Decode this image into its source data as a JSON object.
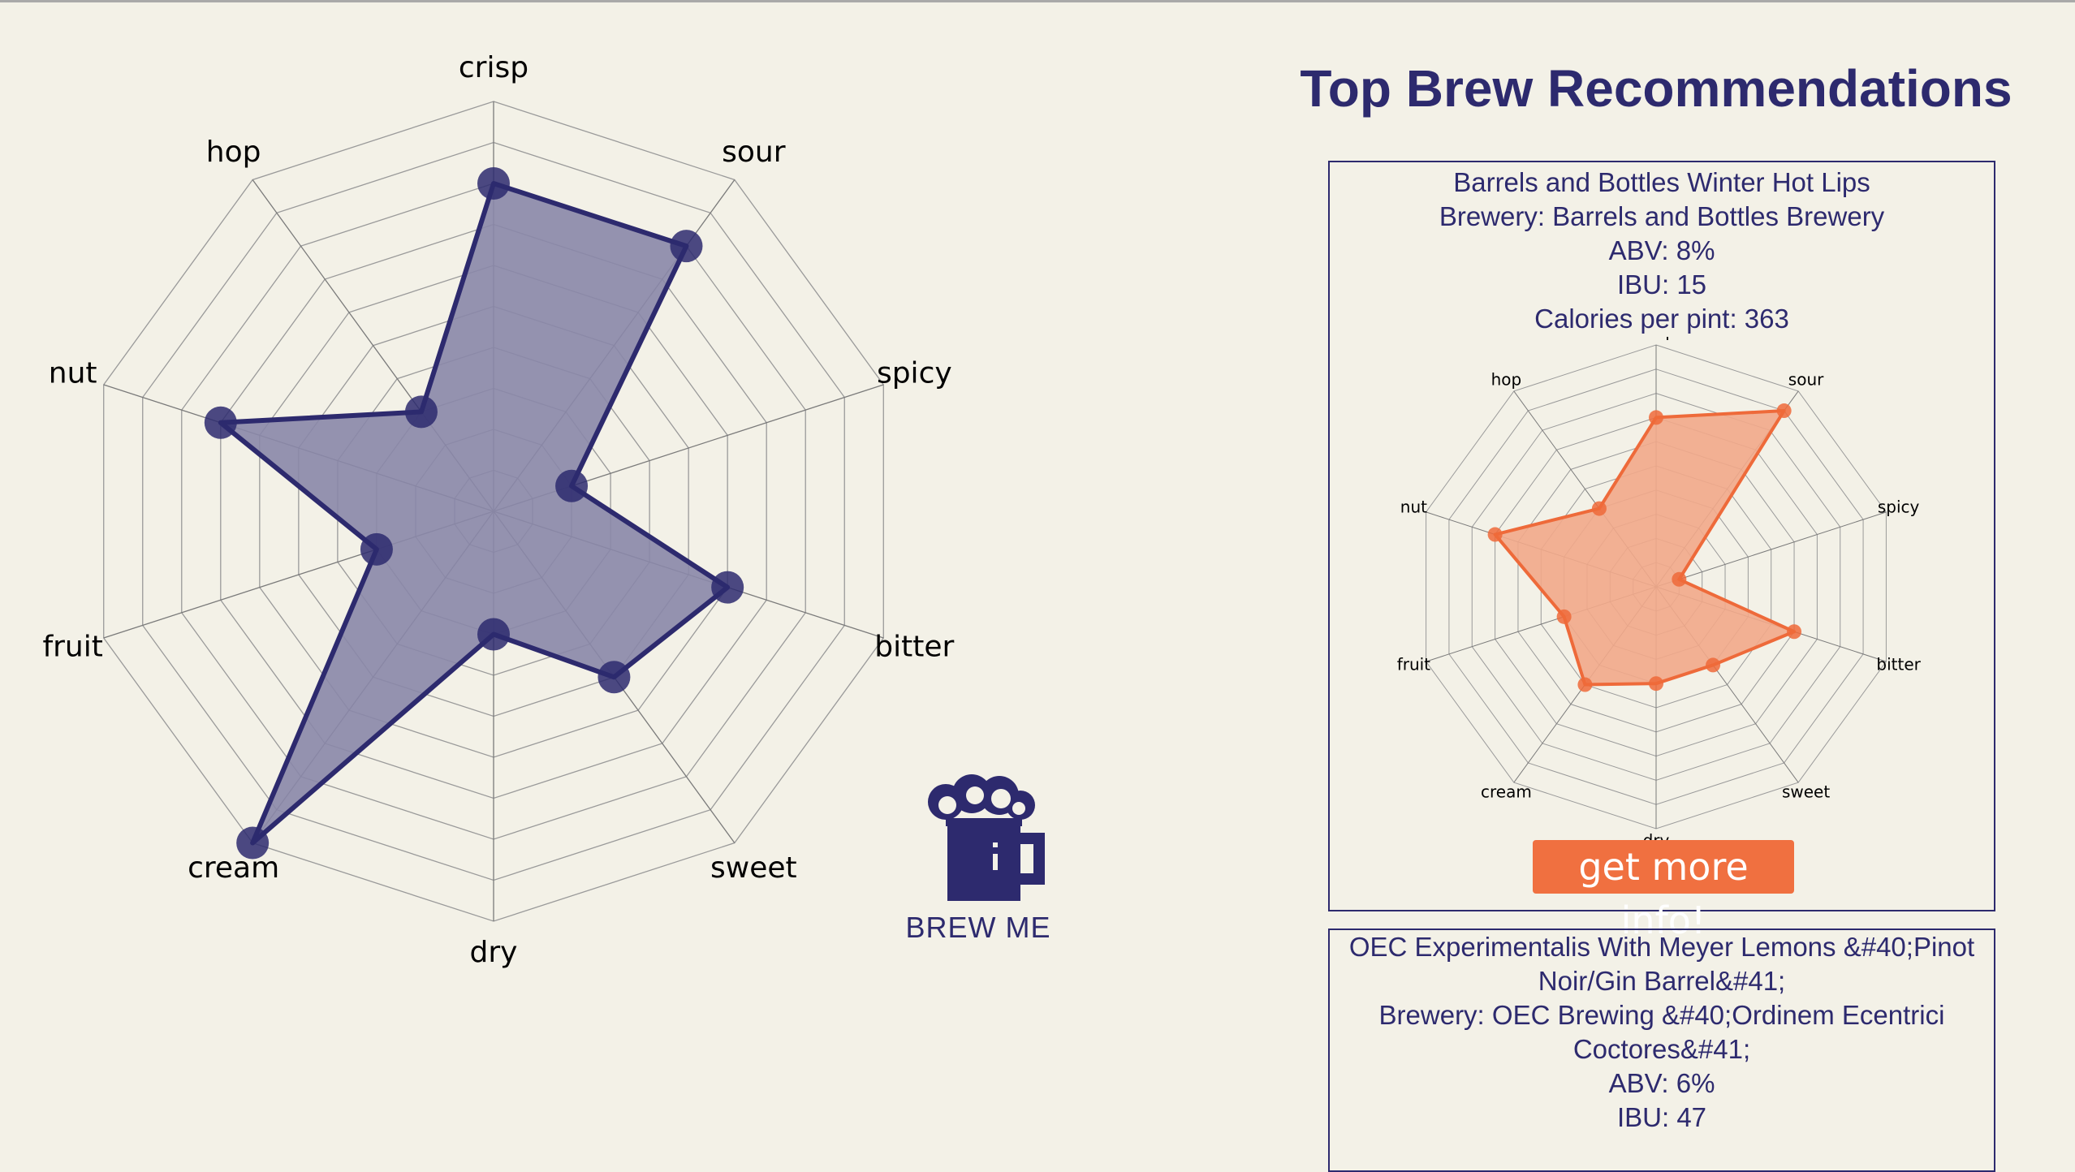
{
  "profile_chart": {
    "type": "radar",
    "axes": [
      "crisp",
      "sour",
      "spicy",
      "bitter",
      "sweet",
      "dry",
      "cream",
      "fruit",
      "nut",
      "hop"
    ],
    "values": [
      8,
      8,
      2,
      6,
      5,
      3,
      10,
      3,
      7,
      3
    ],
    "max": 10,
    "grid_levels": 10,
    "fill_color": "#8a87a8",
    "line_color": "#2d2a6e"
  },
  "brew_button": {
    "label": "BREW ME",
    "icon": "beer-mug-icon"
  },
  "recommendations": {
    "title": "Top Brew Recommendations",
    "items": [
      {
        "name": "Barrels and Bottles Winter Hot Lips",
        "brewery": "Brewery: Barrels and Bottles Brewery",
        "abv": "ABV: 8%",
        "ibu": "IBU: 15",
        "calories": "Calories per pint: 363",
        "button_label": "get more info!",
        "chart_data": {
          "type": "radar",
          "axes": [
            "crisp",
            "sour",
            "spicy",
            "bitter",
            "sweet",
            "dry",
            "cream",
            "fruit",
            "nut",
            "hop"
          ],
          "values": [
            7,
            9,
            1,
            6,
            4,
            4,
            5,
            4,
            7,
            4
          ],
          "max": 10,
          "grid_levels": 10,
          "fill_color": "#f2a98a",
          "line_color": "#ee6a3a"
        }
      },
      {
        "name_line1": "OEC Experimentalis With Meyer Lemons &#40;Pinot",
        "name_line2": "Noir/Gin Barrel&#41;",
        "brewery_line1": "Brewery: OEC Brewing &#40;Ordinem Ecentrici",
        "brewery_line2": "Coctores&#41;",
        "abv": "ABV: 6%",
        "ibu": "IBU: 47"
      }
    ]
  }
}
